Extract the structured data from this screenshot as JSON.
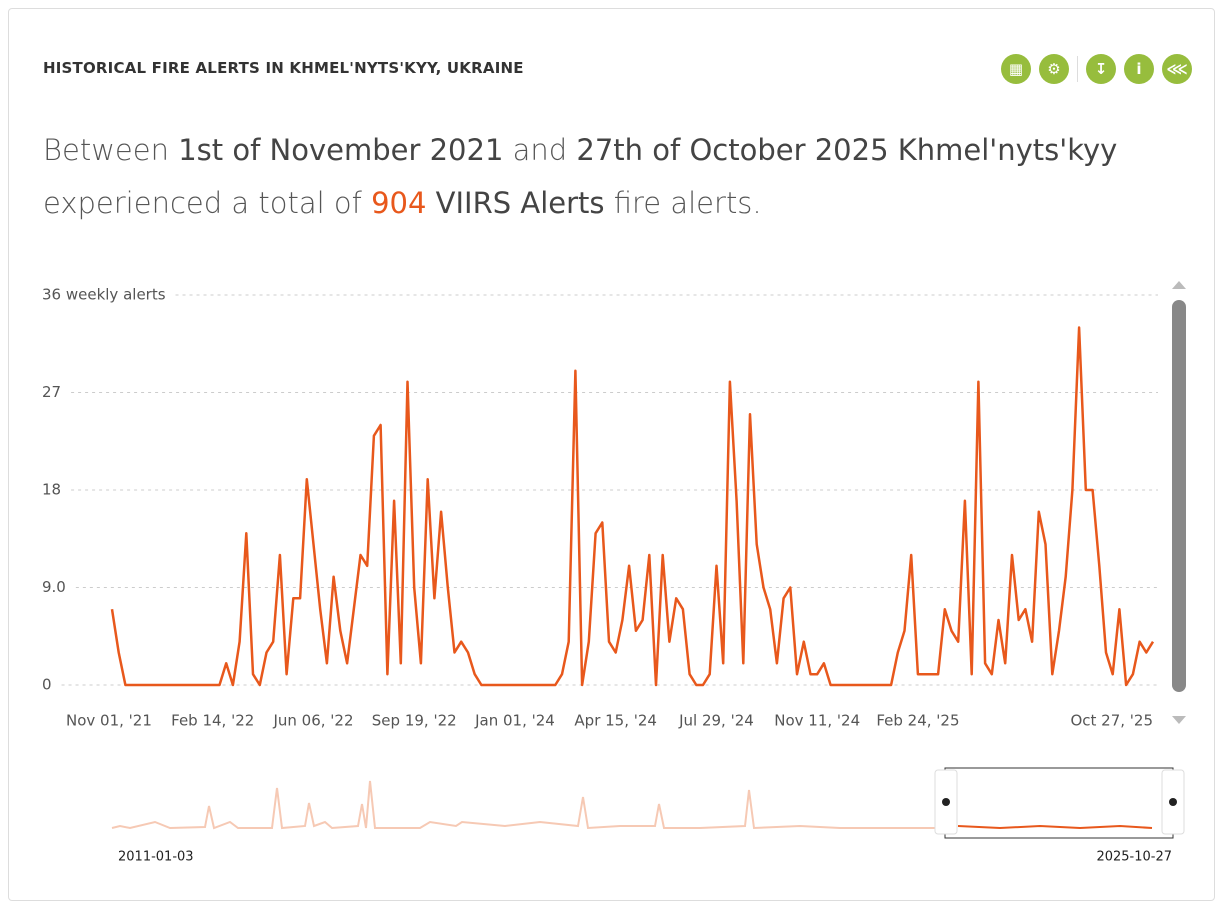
{
  "title": "HISTORICAL FIRE ALERTS IN KHMEL'NYTS'KYY, UKRAINE",
  "summary": {
    "prefix": "Between",
    "start": "1st of November 2021",
    "mid": "and",
    "end": "27th of October 2025 Khmel'nyts'kyy",
    "line2": "experienced a total of",
    "count": 904,
    "dataset": "VIIRS Alerts",
    "suffix": "fire alerts."
  },
  "navigator": {
    "start": "2011-01-03",
    "end": "2025-10-27"
  },
  "chart_data": {
    "type": "line",
    "color": "#e8581c",
    "grid": true,
    "ylim": [
      0,
      36
    ],
    "yticks": [
      0,
      {
        "value": 9,
        "label": "9.0"
      },
      18,
      27,
      {
        "value": 36,
        "label": "36 weekly alerts"
      }
    ],
    "categories": [
      "Nov 01, '21",
      null,
      null,
      null,
      null,
      null,
      null,
      null,
      null,
      null,
      null,
      null,
      null,
      null,
      null,
      "Feb 14, '22",
      null,
      null,
      null,
      null,
      null,
      null,
      null,
      null,
      null,
      null,
      null,
      null,
      null,
      null,
      "Jun 06, '22",
      null,
      null,
      null,
      null,
      null,
      null,
      null,
      null,
      null,
      null,
      null,
      null,
      null,
      null,
      "Sep 19, '22",
      null,
      null,
      null,
      null,
      null,
      null,
      null,
      null,
      null,
      null,
      null,
      null,
      null,
      null,
      "Jan 01, '24",
      null,
      null,
      null,
      null,
      null,
      null,
      null,
      null,
      null,
      null,
      null,
      null,
      null,
      null,
      "Apr 15, '24",
      null,
      null,
      null,
      null,
      null,
      null,
      null,
      null,
      null,
      null,
      null,
      null,
      null,
      null,
      "Jul 29, '24",
      null,
      null,
      null,
      null,
      null,
      null,
      null,
      null,
      null,
      null,
      null,
      null,
      null,
      null,
      "Nov 11, '24",
      null,
      null,
      null,
      null,
      null,
      null,
      null,
      null,
      null,
      null,
      null,
      null,
      null,
      null,
      "Feb 24, '25",
      null,
      null,
      null,
      null,
      null,
      null,
      null,
      null,
      null,
      null,
      null,
      null,
      null,
      null,
      null,
      null,
      null,
      null,
      null,
      null,
      null,
      null,
      null,
      null,
      null,
      null,
      null,
      null,
      null,
      null,
      null,
      null,
      null,
      null,
      "Oct 27, '25"
    ],
    "values": [
      7,
      3,
      0,
      0,
      0,
      0,
      0,
      0,
      0,
      0,
      0,
      0,
      0,
      0,
      0,
      0,
      0,
      2,
      0,
      4,
      14,
      1,
      0,
      3,
      4,
      12,
      1,
      8,
      8,
      19,
      13,
      7,
      2,
      10,
      5,
      2,
      7,
      12,
      11,
      23,
      24,
      1,
      17,
      2,
      28,
      9,
      2,
      19,
      8,
      16,
      9,
      3,
      4,
      3,
      1,
      0,
      0,
      0,
      0,
      0,
      0,
      0,
      0,
      0,
      0,
      0,
      0,
      1,
      4,
      29,
      0,
      4,
      14,
      15,
      4,
      3,
      6,
      11,
      5,
      6,
      12,
      0,
      12,
      4,
      8,
      7,
      1,
      0,
      0,
      1,
      11,
      2,
      28,
      17,
      2,
      25,
      13,
      9,
      7,
      2,
      8,
      9,
      1,
      4,
      1,
      1,
      2,
      0,
      0,
      0,
      0,
      0,
      0,
      0,
      0,
      0,
      0,
      3,
      5,
      12,
      1,
      1,
      1,
      1,
      7,
      5,
      4,
      17,
      1,
      28,
      2,
      1,
      6,
      2,
      12,
      6,
      7,
      4,
      16,
      13,
      1,
      5,
      10,
      18,
      33,
      18,
      18,
      11,
      3,
      1,
      7,
      0,
      1,
      4,
      3,
      4
    ]
  }
}
